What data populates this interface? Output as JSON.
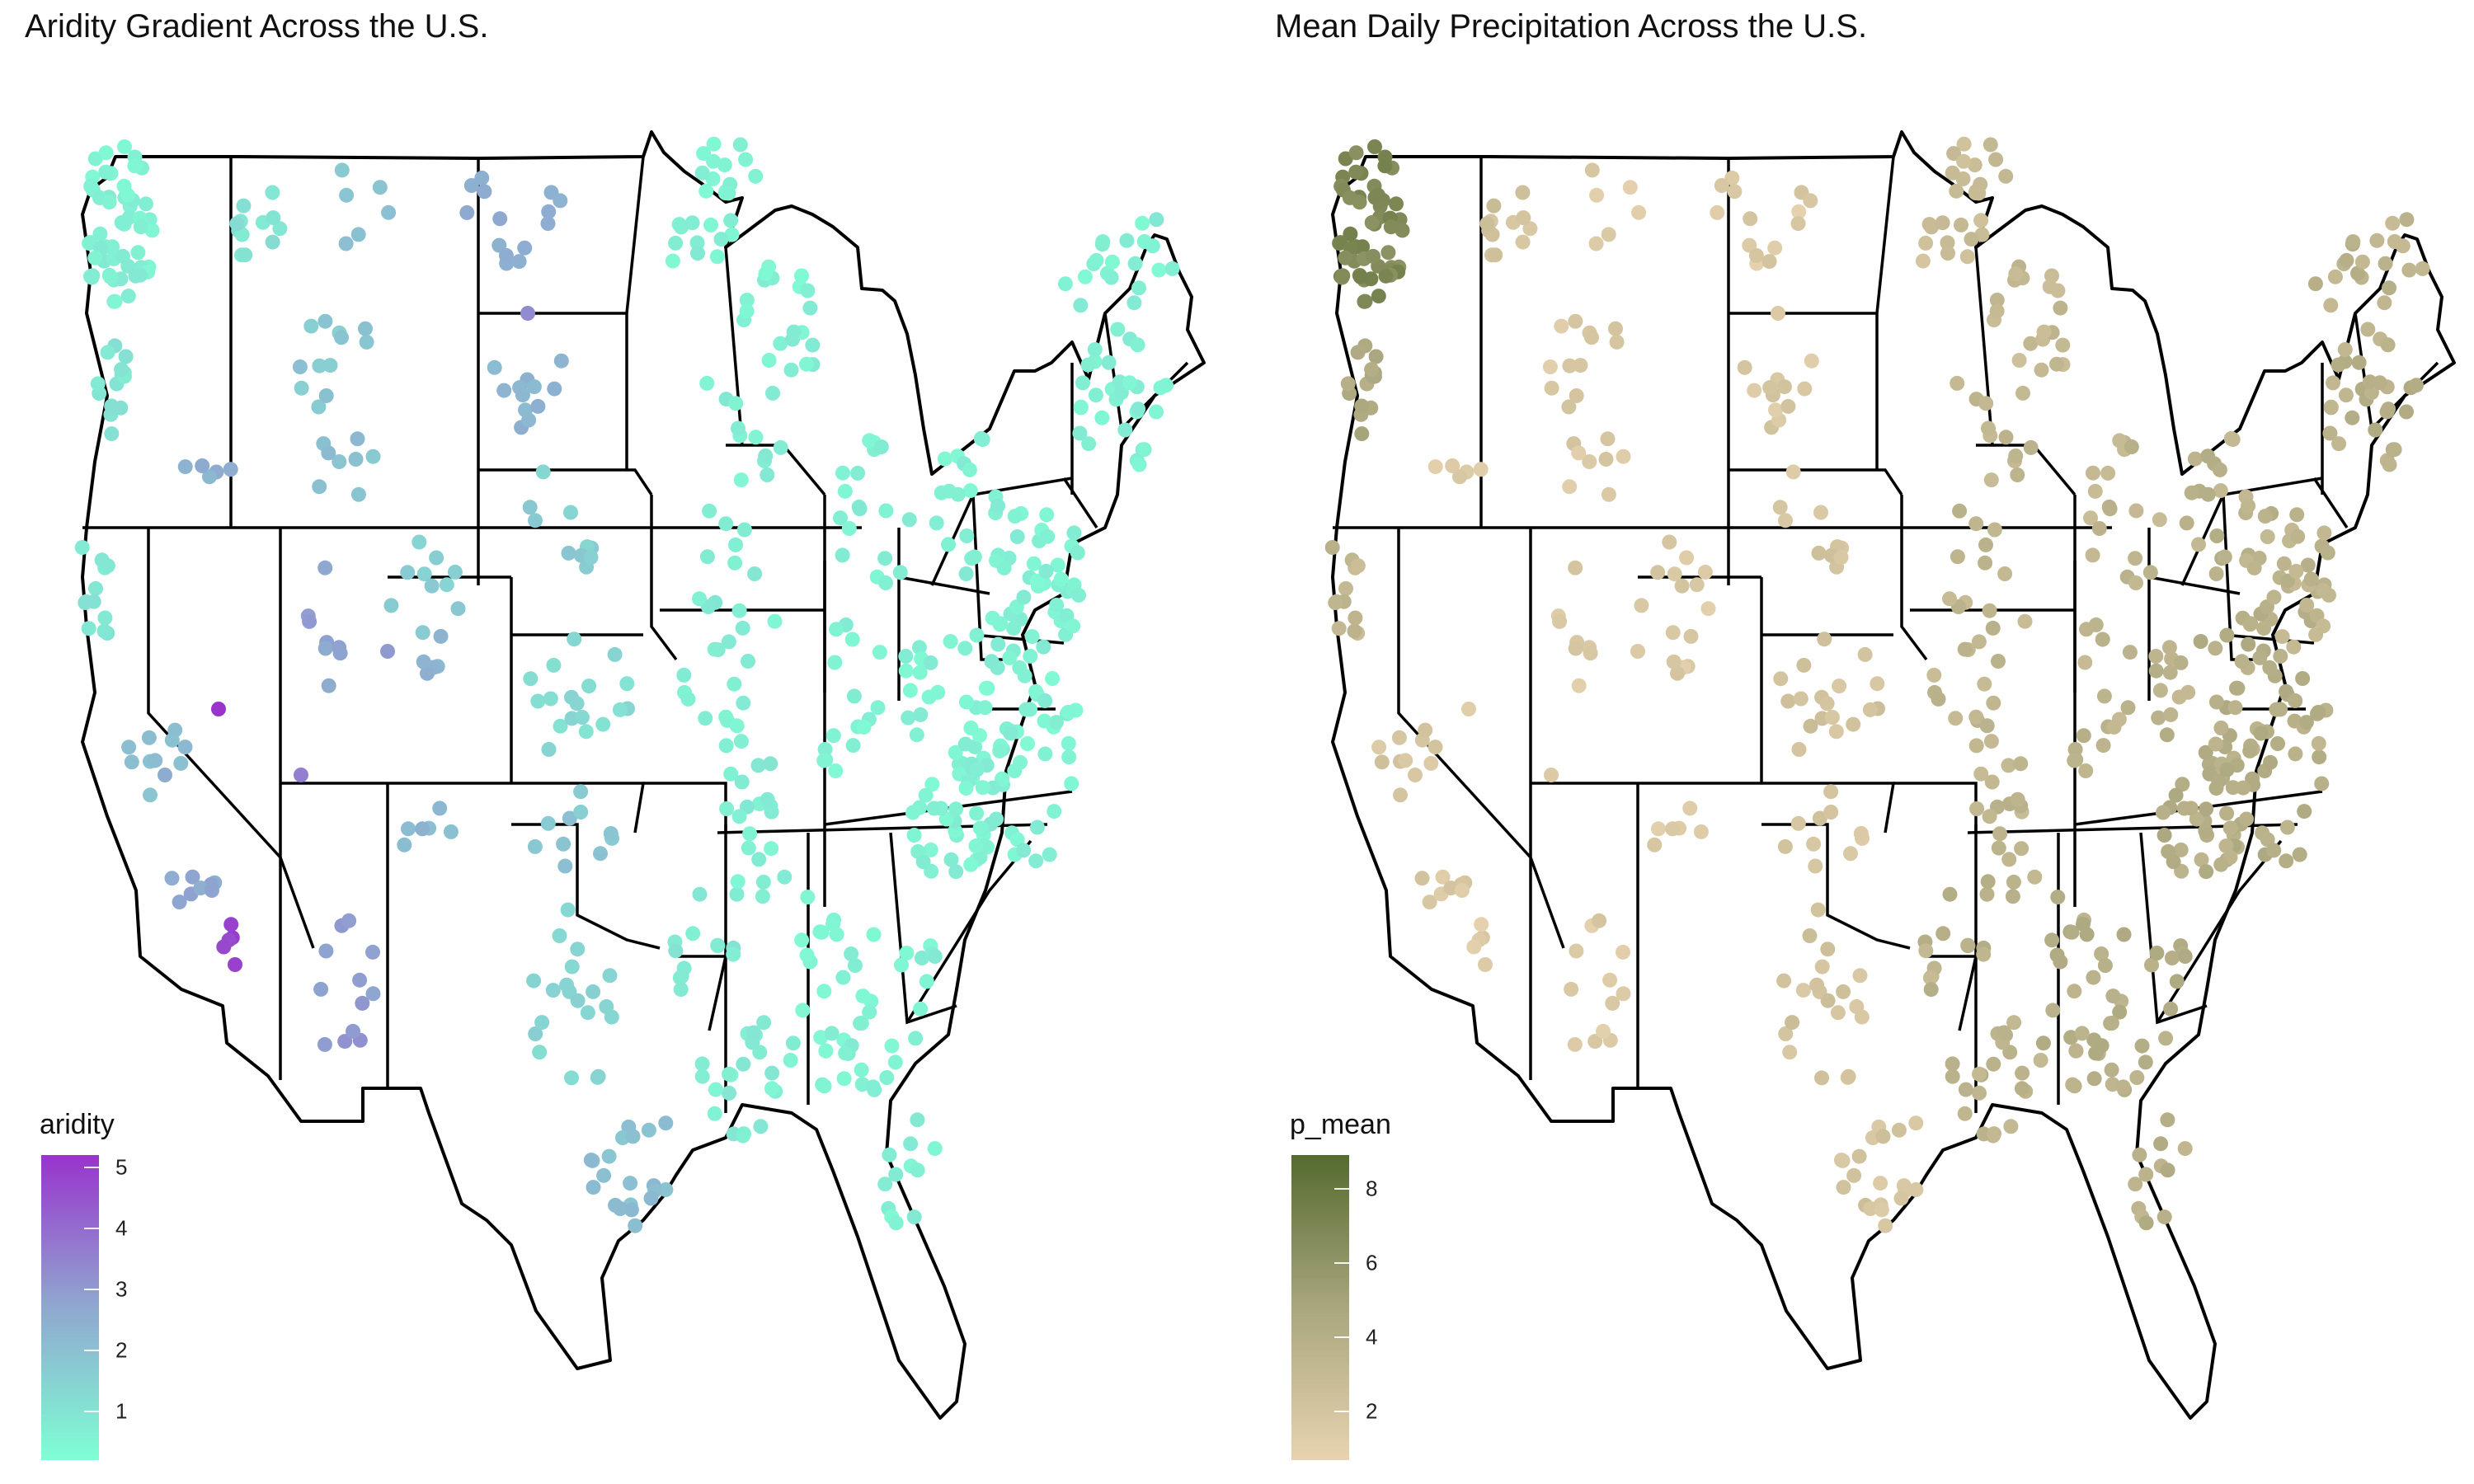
{
  "panels": [
    {
      "title": "Aridity Gradient Across the U.S.",
      "legend": {
        "title": "aridity",
        "ticks": [
          "5",
          "4",
          "3",
          "2",
          "1"
        ],
        "colors": [
          "#9933CC",
          "#8FA8D0",
          "#7FFFD4"
        ],
        "range": [
          0.2,
          5.2
        ]
      },
      "point_color_rule": "aridity"
    },
    {
      "title": "Mean Daily Precipitation Across the U.S.",
      "legend": {
        "title": "p_mean",
        "ticks": [
          "8",
          "6",
          "4",
          "2"
        ],
        "colors": [
          "#556B2F",
          "#A9A67E",
          "#E8D3B0"
        ],
        "range": [
          0.7,
          8.9
        ]
      },
      "point_color_rule": "p_mean"
    }
  ]
}
